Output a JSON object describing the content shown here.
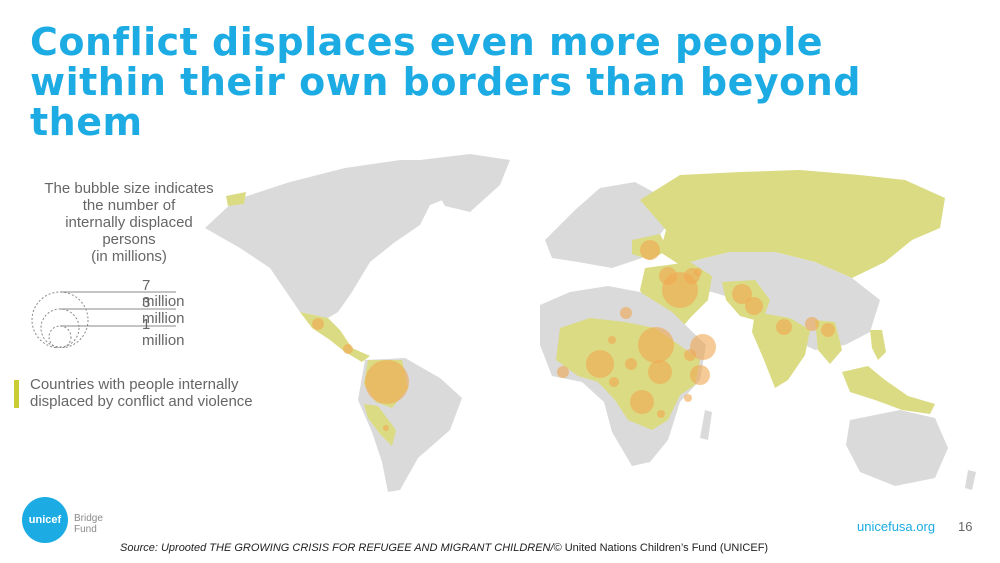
{
  "title": "Conflict displaces even more people within their own borders than beyond them",
  "legend": {
    "lines": [
      "The bubble size indicates",
      "the number of",
      "internally displaced",
      "persons",
      "(in millions)"
    ],
    "scale": [
      "7 million",
      "3 million",
      "1 million"
    ],
    "countries_key": [
      "Countries with people internally",
      "displaced by conflict and violence"
    ]
  },
  "colors": {
    "title": "#1CABE2",
    "land": "#DADADA",
    "affected": "#DBDB84",
    "bubble": "#F0A650",
    "key_swatch": "#C9CC33"
  },
  "logo": {
    "wordmark": "unicef",
    "line1": "Bridge",
    "line2": "Fund"
  },
  "footer": {
    "site": "unicefusa.org",
    "page": "16",
    "source_prefix": "Source: ",
    "source_italic": "Uprooted THE GROWING CRISIS FOR REFUGEE AND MIGRANT CHILDREN/",
    "source_rest": "© United Nations Children’s Fund (UNICEF)"
  }
}
